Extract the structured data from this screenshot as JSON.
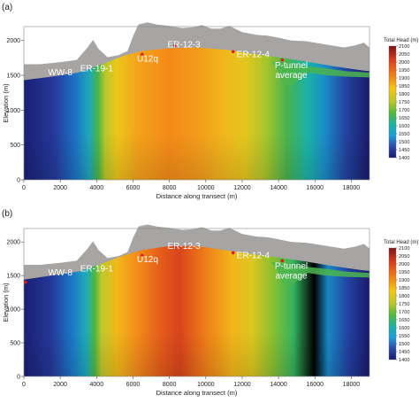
{
  "figure": {
    "colorbar": {
      "title": "Total Head (m)",
      "ticks": [
        "2100",
        "2050",
        "2000",
        "1950",
        "1900",
        "1850",
        "1800",
        "1750",
        "1700",
        "1650",
        "1600",
        "1550",
        "1500",
        "1450",
        "1400"
      ]
    }
  },
  "chart_data": [
    {
      "type": "heatmap",
      "panel_label": "(a)",
      "xlabel": "Distance along transect (m)",
      "ylabel": "Elevation (m)",
      "xlim": [
        0,
        19000
      ],
      "ylim": [
        0,
        2200
      ],
      "xticks": [
        "0",
        "2000",
        "4000",
        "6000",
        "8000",
        "10000",
        "12000",
        "14000",
        "16000",
        "18000"
      ],
      "yticks": [
        "0",
        "500",
        "1000",
        "1500",
        "2000"
      ],
      "color_scale": {
        "variable": "Total Head (m)",
        "min": 1400,
        "max": 2100
      },
      "wells": [
        {
          "name": "WW-8",
          "x": 0,
          "y": 1400,
          "marker": false
        },
        {
          "name": "ER-19-1",
          "x": 4300,
          "y": 1680,
          "marker": false
        },
        {
          "name": "U12q",
          "x": 6500,
          "y": 1800,
          "marker": true
        },
        {
          "name": "ER-12-3",
          "x": 8300,
          "y": 1930,
          "marker": true
        },
        {
          "name": "ER-12-4",
          "x": 11500,
          "y": 1840,
          "marker": true
        },
        {
          "name": "P-tunnel average",
          "x": 14200,
          "y": 1720,
          "marker": true
        }
      ]
    },
    {
      "type": "heatmap",
      "panel_label": "(b)",
      "xlabel": "Distance along transect (m)",
      "ylabel": "Elevation (m)",
      "xlim": [
        0,
        19000
      ],
      "ylim": [
        0,
        2200
      ],
      "xticks": [
        "0",
        "2000",
        "4000",
        "6000",
        "8000",
        "10000",
        "12000",
        "14000",
        "16000",
        "18000"
      ],
      "yticks": [
        "0",
        "500",
        "1000",
        "1500",
        "2000"
      ],
      "color_scale": {
        "variable": "Total Head (m)",
        "min": 1400,
        "max": 2100
      },
      "wells": [
        {
          "name": "WW-8",
          "x": 0,
          "y": 1400,
          "marker": true
        },
        {
          "name": "ER-19-1",
          "x": 4300,
          "y": 1680,
          "marker": false
        },
        {
          "name": "U12q",
          "x": 6500,
          "y": 1800,
          "marker": true
        },
        {
          "name": "ER-12-3",
          "x": 8300,
          "y": 1930,
          "marker": true
        },
        {
          "name": "ER-12-4",
          "x": 11500,
          "y": 1840,
          "marker": true
        },
        {
          "name": "P-tunnel average",
          "x": 14200,
          "y": 1720,
          "marker": true
        }
      ]
    }
  ]
}
